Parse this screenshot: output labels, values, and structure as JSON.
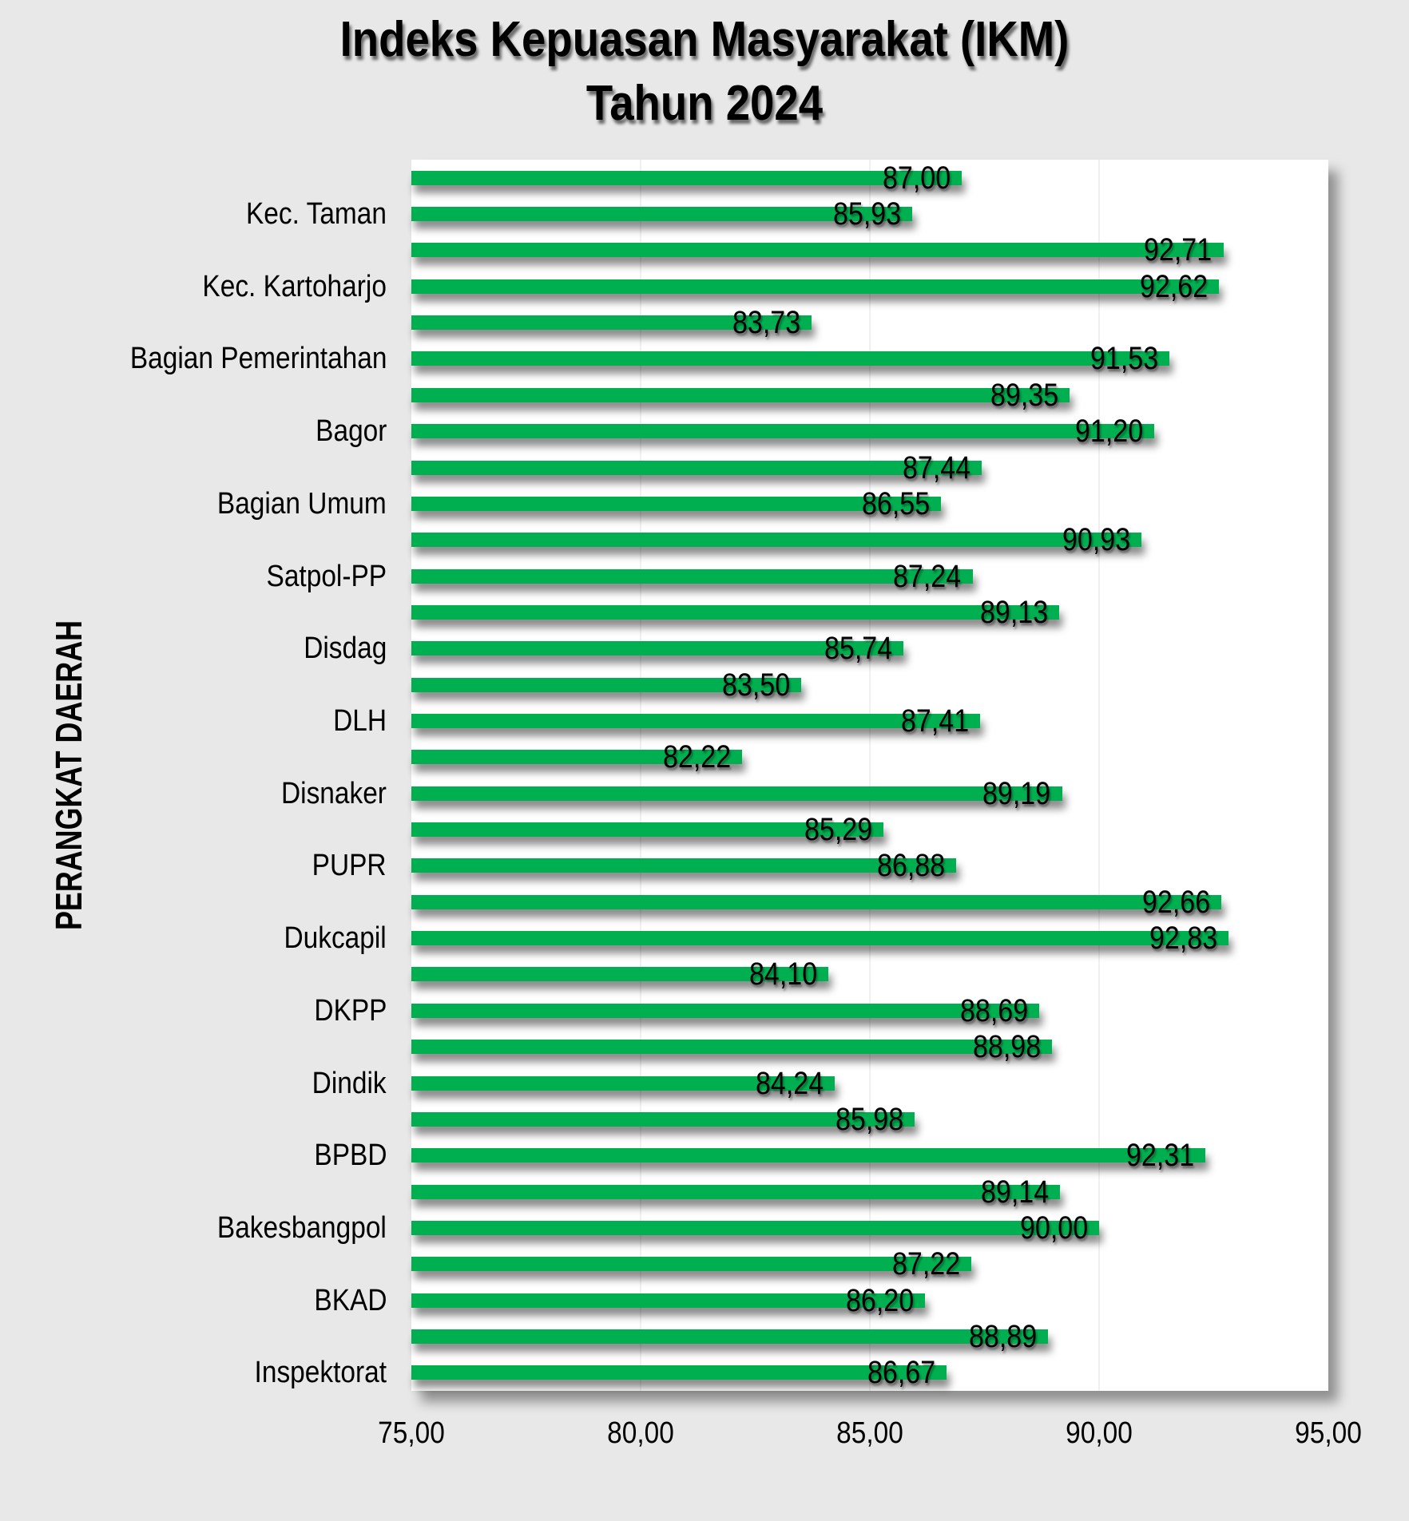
{
  "chart_data": {
    "type": "bar",
    "orientation": "horizontal",
    "title": "Indeks Kepuasan Masyarakat (IKM) Tahun 2024",
    "title_lines": [
      "Indeks Kepuasan Masyarakat (IKM)",
      "Tahun 2024"
    ],
    "ylabel": "PERANGKAT DAERAH",
    "xlabel": "",
    "xlim": [
      75,
      95
    ],
    "x_tick_labels": [
      "75,00",
      "80,00",
      "85,00",
      "90,00",
      "95,00"
    ],
    "gridlines_at": [
      80,
      85,
      90
    ],
    "legend": "none",
    "colors": {
      "bar": "#00B050",
      "background": "#E8E8E8",
      "plot_background": "#FFFFFF",
      "text": "#000000",
      "gridline": "#F0F0F0"
    },
    "bars": [
      {
        "label": "",
        "value": 87.0,
        "value_display": "87,00"
      },
      {
        "label": "Kec. Taman",
        "value": 85.93,
        "value_display": "85,93"
      },
      {
        "label": "",
        "value": 92.71,
        "value_display": "92,71"
      },
      {
        "label": "Kec. Kartoharjo",
        "value": 92.62,
        "value_display": "92,62"
      },
      {
        "label": "",
        "value": 83.73,
        "value_display": "83,73"
      },
      {
        "label": "Bagian Pemerintahan",
        "value": 91.53,
        "value_display": "91,53"
      },
      {
        "label": "",
        "value": 89.35,
        "value_display": "89,35"
      },
      {
        "label": "Bagor",
        "value": 91.2,
        "value_display": "91,20"
      },
      {
        "label": "",
        "value": 87.44,
        "value_display": "87,44"
      },
      {
        "label": "Bagian Umum",
        "value": 86.55,
        "value_display": "86,55"
      },
      {
        "label": "",
        "value": 90.93,
        "value_display": "90,93"
      },
      {
        "label": "Satpol-PP",
        "value": 87.24,
        "value_display": "87,24"
      },
      {
        "label": "",
        "value": 89.13,
        "value_display": "89,13"
      },
      {
        "label": "Disdag",
        "value": 85.74,
        "value_display": "85,74"
      },
      {
        "label": "",
        "value": 83.5,
        "value_display": "83,50"
      },
      {
        "label": "DLH",
        "value": 87.41,
        "value_display": "87,41"
      },
      {
        "label": "",
        "value": 82.22,
        "value_display": "82,22"
      },
      {
        "label": "Disnaker",
        "value": 89.19,
        "value_display": "89,19"
      },
      {
        "label": "",
        "value": 85.29,
        "value_display": "85,29"
      },
      {
        "label": "PUPR",
        "value": 86.88,
        "value_display": "86,88"
      },
      {
        "label": "",
        "value": 92.66,
        "value_display": "92,66"
      },
      {
        "label": "Dukcapil",
        "value": 92.83,
        "value_display": "92,83"
      },
      {
        "label": "",
        "value": 84.1,
        "value_display": "84,10"
      },
      {
        "label": "DKPP",
        "value": 88.69,
        "value_display": "88,69"
      },
      {
        "label": "",
        "value": 88.98,
        "value_display": "88,98"
      },
      {
        "label": "Dindik",
        "value": 84.24,
        "value_display": "84,24"
      },
      {
        "label": "",
        "value": 85.98,
        "value_display": "85,98"
      },
      {
        "label": "BPBD",
        "value": 92.31,
        "value_display": "92,31"
      },
      {
        "label": "",
        "value": 89.14,
        "value_display": "89,14"
      },
      {
        "label": "Bakesbangpol",
        "value": 90.0,
        "value_display": "90,00"
      },
      {
        "label": "",
        "value": 87.22,
        "value_display": "87,22"
      },
      {
        "label": "BKAD",
        "value": 86.2,
        "value_display": "86,20"
      },
      {
        "label": "",
        "value": 88.89,
        "value_display": "88,89"
      },
      {
        "label": "Inspektorat",
        "value": 86.67,
        "value_display": "86,67"
      }
    ]
  }
}
